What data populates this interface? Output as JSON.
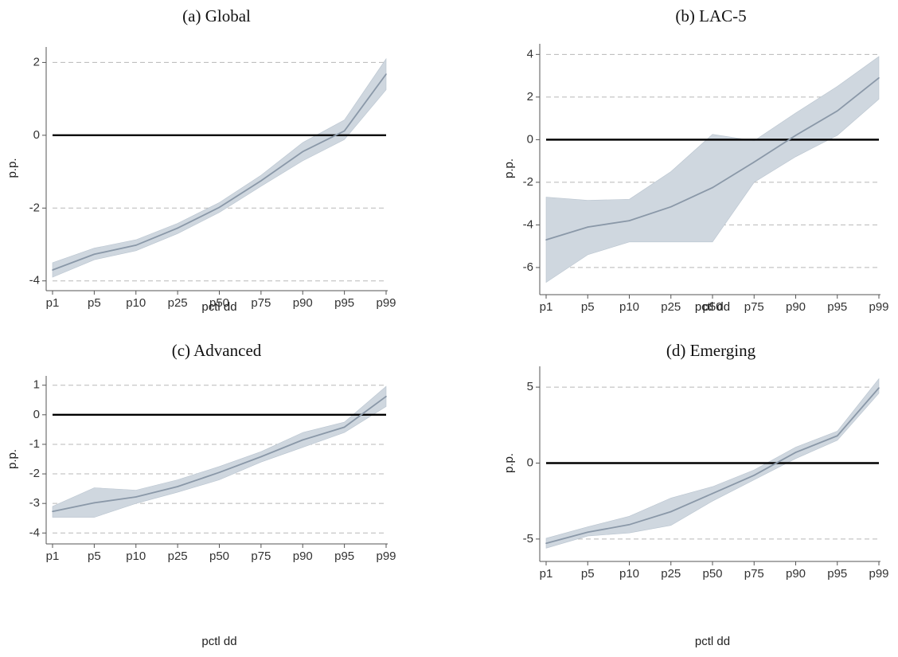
{
  "style": {
    "band_color": "#cfd7df",
    "line_color": "#8a98a8",
    "zero_line_color": "#000000",
    "grid_color": "#b8b8b8"
  },
  "chart_data": [
    {
      "type": "line",
      "title": "(a) Global",
      "xlabel": "pctl dd",
      "ylabel": "p.p.",
      "categories": [
        "p1",
        "p5",
        "p10",
        "p25",
        "p50",
        "p75",
        "p90",
        "p95",
        "p99"
      ],
      "values": [
        -3.7,
        -3.27,
        -3.02,
        -2.55,
        -1.98,
        -1.25,
        -0.45,
        0.12,
        1.68
      ],
      "ci_lower": [
        -3.9,
        -3.42,
        -3.17,
        -2.7,
        -2.12,
        -1.4,
        -0.7,
        -0.12,
        1.25
      ],
      "ci_upper": [
        -3.5,
        -3.1,
        -2.87,
        -2.42,
        -1.85,
        -1.1,
        -0.2,
        0.42,
        2.1
      ],
      "yticks": [
        -4,
        -2,
        0,
        2
      ],
      "ylim": [
        -4.05,
        2.25
      ],
      "grid": "dashed horizontal at y ticks",
      "reference_line": 0
    },
    {
      "type": "line",
      "title": "(b) LAC-5",
      "xlabel": "pctl dd",
      "ylabel": "p.p.",
      "categories": [
        "p1",
        "p5",
        "p10",
        "p25",
        "p50",
        "p75",
        "p90",
        "p95",
        "p99"
      ],
      "values": [
        -4.7,
        -4.1,
        -3.8,
        -3.15,
        -2.25,
        -1.05,
        0.2,
        1.35,
        2.9
      ],
      "ci_lower": [
        -6.7,
        -5.4,
        -4.8,
        -4.8,
        -4.8,
        -2.0,
        -0.8,
        0.2,
        1.9
      ],
      "ci_upper": [
        -2.7,
        -2.85,
        -2.8,
        -1.5,
        0.25,
        -0.05,
        1.25,
        2.5,
        3.9
      ],
      "yticks": [
        -6,
        -4,
        -2,
        0,
        2,
        4
      ],
      "ylim": [
        -6.9,
        4.2
      ],
      "grid": "dashed horizontal at y ticks",
      "reference_line": 0
    },
    {
      "type": "line",
      "title": "(c) Advanced",
      "xlabel": "pctl dd",
      "ylabel": "p.p.",
      "categories": [
        "p1",
        "p5",
        "p10",
        "p25",
        "p50",
        "p75",
        "p90",
        "p95",
        "p99"
      ],
      "values": [
        -3.27,
        -2.98,
        -2.78,
        -2.43,
        -1.95,
        -1.42,
        -0.85,
        -0.42,
        0.62
      ],
      "ci_lower": [
        -3.47,
        -3.47,
        -3.0,
        -2.62,
        -2.2,
        -1.6,
        -1.1,
        -0.6,
        0.28
      ],
      "ci_upper": [
        -3.1,
        -2.47,
        -2.55,
        -2.2,
        -1.75,
        -1.25,
        -0.6,
        -0.25,
        0.96
      ],
      "yticks": [
        -4,
        -3,
        -2,
        -1,
        0,
        1
      ],
      "ylim": [
        -4.1,
        1.1
      ],
      "grid": "dashed horizontal at y ticks",
      "reference_line": 0
    },
    {
      "type": "line",
      "title": "(d) Emerging",
      "xlabel": "pctl dd",
      "ylabel": "p.p.",
      "categories": [
        "p1",
        "p5",
        "p10",
        "p25",
        "p50",
        "p75",
        "p90",
        "p95",
        "p99"
      ],
      "values": [
        -5.28,
        -4.55,
        -4.05,
        -3.2,
        -2.0,
        -0.8,
        0.7,
        1.8,
        4.95
      ],
      "ci_lower": [
        -5.6,
        -4.8,
        -4.6,
        -4.1,
        -2.5,
        -1.1,
        0.3,
        1.5,
        4.6
      ],
      "ci_upper": [
        -4.95,
        -4.2,
        -3.5,
        -2.3,
        -1.55,
        -0.45,
        1.05,
        2.1,
        5.55
      ],
      "yticks": [
        -5,
        0,
        5
      ],
      "ylim": [
        -5.95,
        5.95
      ],
      "grid": "dashed horizontal at y ticks",
      "reference_line": 0
    }
  ]
}
